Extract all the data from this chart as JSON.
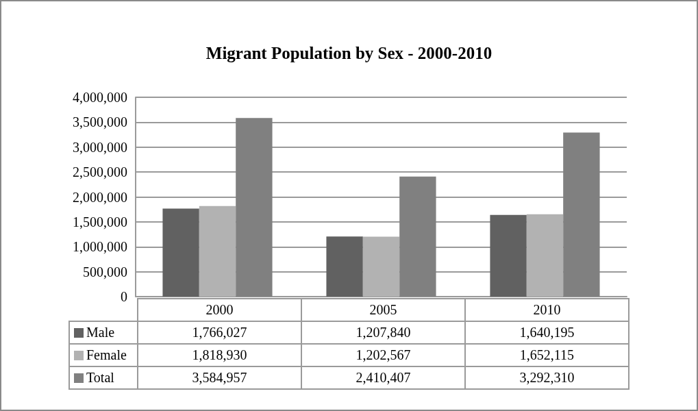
{
  "chart_data": {
    "type": "bar",
    "title": "Migrant Population by Sex - 2000-2010",
    "categories": [
      "2000",
      "2005",
      "2010"
    ],
    "series": [
      {
        "name": "Male",
        "color": "#616161",
        "values": [
          1766027,
          1207840,
          1640195
        ],
        "value_labels": [
          "1,766,027",
          "1,207,840",
          "1,640,195"
        ]
      },
      {
        "name": "Female",
        "color": "#b2b2b2",
        "values": [
          1818930,
          1202567,
          1652115
        ],
        "value_labels": [
          "1,818,930",
          "1,202,567",
          "1,652,115"
        ]
      },
      {
        "name": "Total",
        "color": "#808080",
        "values": [
          3584957,
          2410407,
          3292310
        ],
        "value_labels": [
          "3,584,957",
          "2,410,407",
          "3,292,310"
        ]
      }
    ],
    "ylim": [
      0,
      4000000
    ],
    "yticks": [
      {
        "value": 0,
        "label": "0"
      },
      {
        "value": 500000,
        "label": "500,000"
      },
      {
        "value": 1000000,
        "label": "1,000,000"
      },
      {
        "value": 1500000,
        "label": "1,500,000"
      },
      {
        "value": 2000000,
        "label": "2,000,000"
      },
      {
        "value": 2500000,
        "label": "2,500,000"
      },
      {
        "value": 3000000,
        "label": "3,000,000"
      },
      {
        "value": 3500000,
        "label": "3,500,000"
      },
      {
        "value": 4000000,
        "label": "4,000,000"
      }
    ],
    "grid": "y",
    "legend": "bottom left"
  }
}
